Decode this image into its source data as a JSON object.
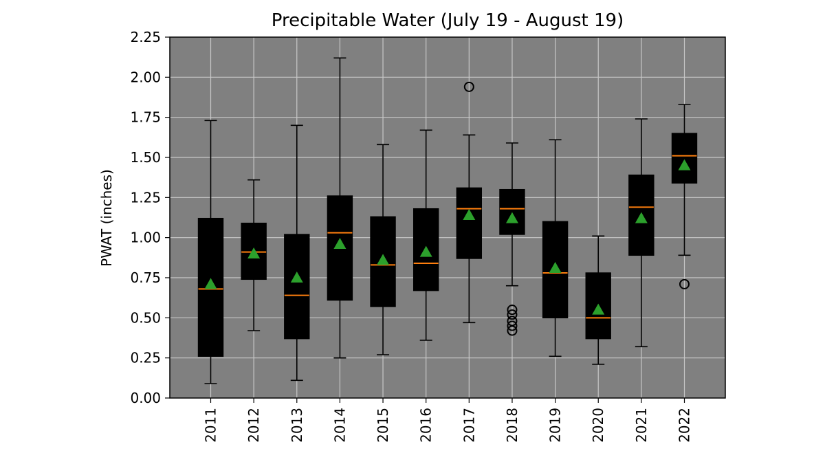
{
  "chart_data": {
    "type": "boxplot",
    "title": "Precipitable Water (July 19 - August 19)",
    "xlabel": "",
    "ylabel": "PWAT (inches)",
    "ylim": [
      0,
      2.25
    ],
    "yticks": [
      "0.00",
      "0.25",
      "0.50",
      "0.75",
      "1.00",
      "1.25",
      "1.50",
      "1.75",
      "2.00",
      "2.25"
    ],
    "grid": true,
    "colors": {
      "plot_background": "#808080",
      "grid": "#c8c8c8",
      "box": "#000000",
      "median": "#ff7f0e",
      "mean_marker": "#2ca02c",
      "outlier": "#000000"
    },
    "categories": [
      "2011",
      "2012",
      "2013",
      "2014",
      "2015",
      "2016",
      "2017",
      "2018",
      "2019",
      "2020",
      "2021",
      "2022"
    ],
    "boxes": [
      {
        "year": "2011",
        "whisker_low": 0.09,
        "q1": 0.26,
        "median": 0.68,
        "q3": 1.12,
        "whisker_high": 1.73,
        "mean": 0.71,
        "outliers": []
      },
      {
        "year": "2012",
        "whisker_low": 0.42,
        "q1": 0.74,
        "median": 0.91,
        "q3": 1.09,
        "whisker_high": 1.36,
        "mean": 0.9,
        "outliers": []
      },
      {
        "year": "2013",
        "whisker_low": 0.11,
        "q1": 0.37,
        "median": 0.64,
        "q3": 1.02,
        "whisker_high": 1.7,
        "mean": 0.75,
        "outliers": []
      },
      {
        "year": "2014",
        "whisker_low": 0.25,
        "q1": 0.61,
        "median": 1.03,
        "q3": 1.26,
        "whisker_high": 2.12,
        "mean": 0.96,
        "outliers": []
      },
      {
        "year": "2015",
        "whisker_low": 0.27,
        "q1": 0.57,
        "median": 0.83,
        "q3": 1.13,
        "whisker_high": 1.58,
        "mean": 0.86,
        "outliers": []
      },
      {
        "year": "2016",
        "whisker_low": 0.36,
        "q1": 0.67,
        "median": 0.84,
        "q3": 1.18,
        "whisker_high": 1.67,
        "mean": 0.91,
        "outliers": []
      },
      {
        "year": "2017",
        "whisker_low": 0.47,
        "q1": 0.87,
        "median": 1.18,
        "q3": 1.31,
        "whisker_high": 1.64,
        "mean": 1.14,
        "outliers": [
          1.94
        ]
      },
      {
        "year": "2018",
        "whisker_low": 0.7,
        "q1": 1.02,
        "median": 1.18,
        "q3": 1.3,
        "whisker_high": 1.59,
        "mean": 1.12,
        "outliers": [
          0.55,
          0.52,
          0.48,
          0.45,
          0.42
        ]
      },
      {
        "year": "2019",
        "whisker_low": 0.26,
        "q1": 0.5,
        "median": 0.78,
        "q3": 1.1,
        "whisker_high": 1.61,
        "mean": 0.81,
        "outliers": []
      },
      {
        "year": "2020",
        "whisker_low": 0.21,
        "q1": 0.37,
        "median": 0.5,
        "q3": 0.78,
        "whisker_high": 1.01,
        "mean": 0.55,
        "outliers": []
      },
      {
        "year": "2021",
        "whisker_low": 0.32,
        "q1": 0.89,
        "median": 1.19,
        "q3": 1.39,
        "whisker_high": 1.74,
        "mean": 1.12,
        "outliers": []
      },
      {
        "year": "2022",
        "whisker_low": 0.89,
        "q1": 1.34,
        "median": 1.51,
        "q3": 1.65,
        "whisker_high": 1.83,
        "mean": 1.45,
        "outliers": [
          0.71
        ]
      }
    ]
  }
}
